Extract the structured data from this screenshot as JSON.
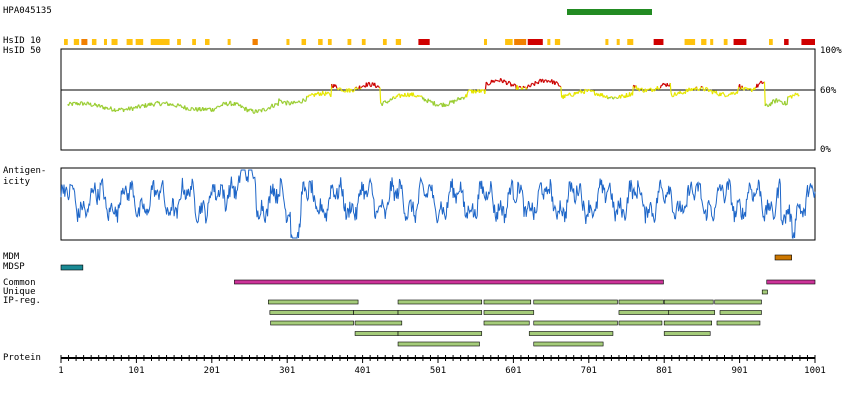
{
  "antibody_id": "HPA045135",
  "labels": {
    "hsid10": "HsID 10",
    "hsid50": "HsID 50",
    "antigenicity_line1": "Antigen-",
    "antigenicity_line2": "icity",
    "mdm": "MDM",
    "mdsp": "MDSP",
    "common": "Common",
    "unique": "Unique",
    "ipreg": "IP-reg.",
    "protein": "Protein"
  },
  "identity_axis": {
    "top": "100%",
    "mid": "60%",
    "bottom": "0%"
  },
  "protein_axis": {
    "length": 1001,
    "ticks": [
      "1",
      "101",
      "201",
      "301",
      "401",
      "501",
      "601",
      "701",
      "801",
      "901",
      "1001"
    ]
  },
  "colors": {
    "antigen_bar": "#228B22",
    "identity_low": "#9ACD32",
    "identity_mid": "#E6E600",
    "identity_high": "#CC0000",
    "antigenicity_line": "#1E66C8",
    "mdm": "#CC7700",
    "mdsp": "#1A8A94",
    "common": "#CC3399",
    "unique": "#a5cc7a",
    "ipreg": "#a5cc7a",
    "hsid_yellow": "#FFC20E",
    "hsid_orange": "#F07F00",
    "hsid_red": "#D00000"
  },
  "antigen_region": [
    672,
    785
  ],
  "mdm_regions": [
    [
      948,
      970
    ]
  ],
  "mdsp_regions": [
    [
      1,
      30
    ]
  ],
  "common_regions": [
    [
      231,
      800
    ],
    [
      937,
      1001
    ]
  ],
  "unique_regions": [
    [
      931,
      938
    ]
  ],
  "ipreg_regions": [
    [
      276,
      395
    ],
    [
      448,
      559
    ],
    [
      562,
      624
    ],
    [
      628,
      739
    ],
    [
      741,
      800
    ],
    [
      801,
      866
    ],
    [
      868,
      930
    ],
    [
      278,
      389
    ],
    [
      389,
      448
    ],
    [
      448,
      559
    ],
    [
      562,
      628
    ],
    [
      741,
      807
    ],
    [
      807,
      868
    ],
    [
      875,
      930
    ],
    [
      279,
      389
    ],
    [
      391,
      453
    ],
    [
      562,
      622
    ],
    [
      628,
      739
    ],
    [
      741,
      798
    ],
    [
      801,
      864
    ],
    [
      871,
      928
    ],
    [
      391,
      448
    ],
    [
      448,
      559
    ],
    [
      622,
      733
    ],
    [
      801,
      862
    ],
    [
      448,
      556
    ],
    [
      628,
      720
    ]
  ],
  "ipreg_rows": [
    0,
    0,
    0,
    0,
    0,
    0,
    0,
    1,
    1,
    1,
    1,
    1,
    1,
    1,
    2,
    2,
    2,
    2,
    2,
    2,
    2,
    3,
    3,
    3,
    3,
    4,
    4
  ],
  "hsid10_segments": [
    [
      5,
      10,
      "y"
    ],
    [
      18,
      25,
      "y"
    ],
    [
      28,
      36,
      "o"
    ],
    [
      42,
      48,
      "y"
    ],
    [
      58,
      62,
      "y"
    ],
    [
      68,
      76,
      "y"
    ],
    [
      88,
      96,
      "y"
    ],
    [
      100,
      110,
      "y"
    ],
    [
      120,
      145,
      "y"
    ],
    [
      155,
      160,
      "y"
    ],
    [
      175,
      180,
      "y"
    ],
    [
      192,
      198,
      "y"
    ],
    [
      222,
      226,
      "y"
    ],
    [
      255,
      262,
      "o"
    ],
    [
      300,
      304,
      "y"
    ],
    [
      320,
      326,
      "y"
    ],
    [
      342,
      348,
      "y"
    ],
    [
      355,
      360,
      "y"
    ],
    [
      381,
      386,
      "y"
    ],
    [
      400,
      405,
      "y"
    ],
    [
      428,
      433,
      "y"
    ],
    [
      445,
      452,
      "y"
    ],
    [
      475,
      490,
      "r"
    ],
    [
      562,
      566,
      "y"
    ],
    [
      590,
      600,
      "y"
    ],
    [
      602,
      618,
      "o"
    ],
    [
      620,
      640,
      "r"
    ],
    [
      646,
      650,
      "y"
    ],
    [
      656,
      663,
      "y"
    ],
    [
      723,
      727,
      "y"
    ],
    [
      738,
      742,
      "y"
    ],
    [
      752,
      760,
      "y"
    ],
    [
      787,
      800,
      "r"
    ],
    [
      828,
      842,
      "y"
    ],
    [
      850,
      857,
      "y"
    ],
    [
      862,
      866,
      "y"
    ],
    [
      880,
      885,
      "y"
    ],
    [
      893,
      910,
      "r"
    ],
    [
      940,
      945,
      "y"
    ],
    [
      960,
      966,
      "r"
    ],
    [
      983,
      1001,
      "r"
    ]
  ]
}
